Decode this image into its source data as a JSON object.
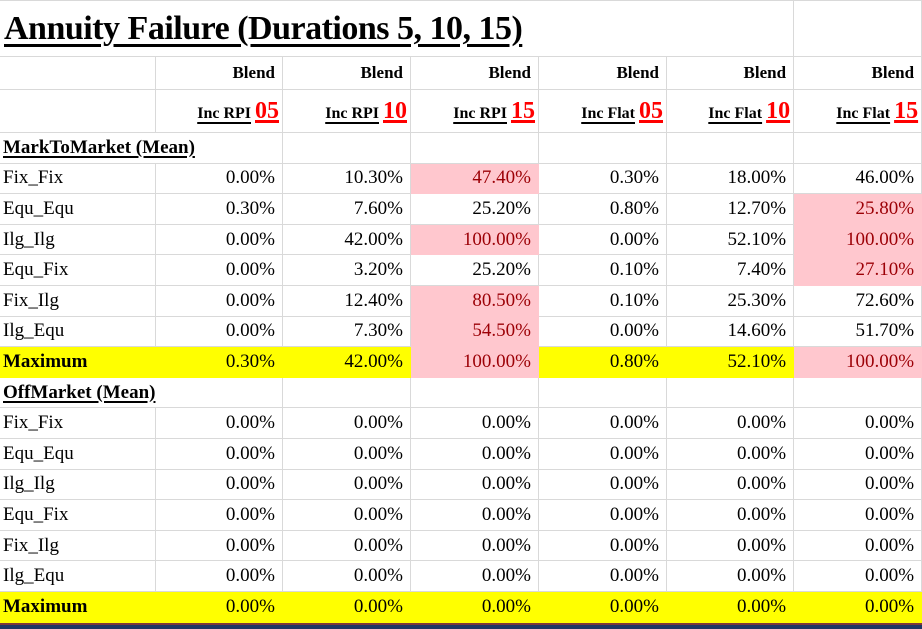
{
  "title": "Annuity Failure (Durations 5, 10, 15)",
  "header": {
    "blend_label": "Blend",
    "columns": [
      {
        "prefix": "Inc RPI",
        "num": "05"
      },
      {
        "prefix": "Inc RPI",
        "num": "10"
      },
      {
        "prefix": "Inc RPI",
        "num": "15"
      },
      {
        "prefix": "Inc Flat",
        "num": "05"
      },
      {
        "prefix": "Inc Flat",
        "num": "10"
      },
      {
        "prefix": "Inc Flat",
        "num": "15"
      }
    ]
  },
  "sections": [
    {
      "name": "MarkToMarket (Mean)",
      "rows": [
        {
          "label": "Fix_Fix",
          "values": [
            "0.00%",
            "10.30%",
            "47.40%",
            "0.30%",
            "18.00%",
            "46.00%"
          ],
          "pink": [
            2
          ]
        },
        {
          "label": "Equ_Equ",
          "values": [
            "0.30%",
            "7.60%",
            "25.20%",
            "0.80%",
            "12.70%",
            "25.80%"
          ],
          "pink": [
            5
          ]
        },
        {
          "label": "Ilg_Ilg",
          "values": [
            "0.00%",
            "42.00%",
            "100.00%",
            "0.00%",
            "52.10%",
            "100.00%"
          ],
          "pink": [
            2,
            5
          ]
        },
        {
          "label": "Equ_Fix",
          "values": [
            "0.00%",
            "3.20%",
            "25.20%",
            "0.10%",
            "7.40%",
            "27.10%"
          ],
          "pink": [
            5
          ]
        },
        {
          "label": "Fix_Ilg",
          "values": [
            "0.00%",
            "12.40%",
            "80.50%",
            "0.10%",
            "25.30%",
            "72.60%"
          ],
          "pink": [
            2
          ]
        },
        {
          "label": "Ilg_Equ",
          "values": [
            "0.00%",
            "7.30%",
            "54.50%",
            "0.00%",
            "14.60%",
            "51.70%"
          ],
          "pink": [
            2
          ]
        }
      ],
      "maximum": {
        "label": "Maximum",
        "values": [
          "0.30%",
          "42.00%",
          "100.00%",
          "0.80%",
          "52.10%",
          "100.00%"
        ],
        "pink": [
          2,
          5
        ]
      }
    },
    {
      "name": "OffMarket (Mean)",
      "rows": [
        {
          "label": "Fix_Fix",
          "values": [
            "0.00%",
            "0.00%",
            "0.00%",
            "0.00%",
            "0.00%",
            "0.00%"
          ],
          "pink": []
        },
        {
          "label": "Equ_Equ",
          "values": [
            "0.00%",
            "0.00%",
            "0.00%",
            "0.00%",
            "0.00%",
            "0.00%"
          ],
          "pink": []
        },
        {
          "label": "Ilg_Ilg",
          "values": [
            "0.00%",
            "0.00%",
            "0.00%",
            "0.00%",
            "0.00%",
            "0.00%"
          ],
          "pink": []
        },
        {
          "label": "Equ_Fix",
          "values": [
            "0.00%",
            "0.00%",
            "0.00%",
            "0.00%",
            "0.00%",
            "0.00%"
          ],
          "pink": []
        },
        {
          "label": "Fix_Ilg",
          "values": [
            "0.00%",
            "0.00%",
            "0.00%",
            "0.00%",
            "0.00%",
            "0.00%"
          ],
          "pink": []
        },
        {
          "label": "Ilg_Equ",
          "values": [
            "0.00%",
            "0.00%",
            "0.00%",
            "0.00%",
            "0.00%",
            "0.00%"
          ],
          "pink": []
        }
      ],
      "maximum": {
        "label": "Maximum",
        "values": [
          "0.00%",
          "0.00%",
          "0.00%",
          "0.00%",
          "0.00%",
          "0.00%"
        ],
        "pink": []
      }
    }
  ],
  "colors": {
    "highlight_bad_bg": "#FFC7CE",
    "highlight_bad_text": "#9C0006",
    "maximum_row_bg": "#FFFF00",
    "header_number_red": "#FF0000",
    "gridline": "#D9D9D9",
    "bottom_bar": "#1F3864"
  }
}
